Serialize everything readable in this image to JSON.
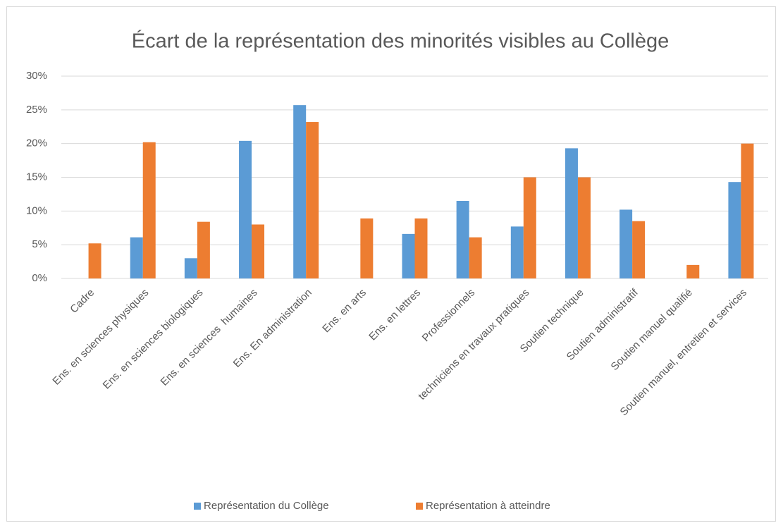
{
  "chart_data": {
    "type": "bar",
    "title": "Écart de la représentation des minorités visibles au Collège",
    "categories": [
      "Cadre",
      "Ens. en sciences physiques",
      "Ens. en sciences biologiques",
      "Ens. en sciences  humaines",
      "Ens. En administration",
      "Ens. en arts",
      "Ens. en lettres",
      "Professionnels",
      "techniciens en travaux pratiques",
      "Soutien technique",
      "Soutien administratif",
      "Soutien manuel qualifié",
      "Soutien manuel, entretien et services"
    ],
    "series": [
      {
        "name": "Représentation du Collège",
        "color": "#5b9bd5",
        "values": [
          0,
          6.1,
          3.0,
          20.4,
          25.7,
          0,
          6.6,
          11.5,
          7.7,
          19.3,
          10.2,
          0,
          14.3
        ]
      },
      {
        "name": "Représentation à atteindre",
        "color": "#ed7d31",
        "values": [
          5.2,
          20.2,
          8.4,
          8.0,
          23.2,
          8.9,
          8.9,
          6.1,
          15.0,
          15.0,
          8.5,
          2.0,
          20.0
        ]
      }
    ],
    "ylim": [
      0,
      30
    ],
    "yticks": [
      {
        "value": 0,
        "label": "0%"
      },
      {
        "value": 5,
        "label": "5%"
      },
      {
        "value": 10,
        "label": "10%"
      },
      {
        "value": 15,
        "label": "15%"
      },
      {
        "value": 20,
        "label": "20%"
      },
      {
        "value": 25,
        "label": "25%"
      },
      {
        "value": 30,
        "label": "30%"
      }
    ],
    "grid": true,
    "legend": "bottom"
  }
}
